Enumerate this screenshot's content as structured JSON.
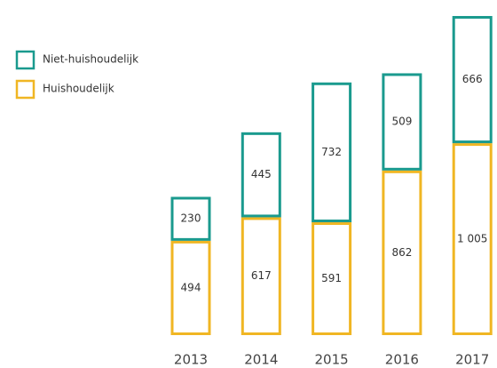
{
  "chart_data": {
    "type": "stacked-bar",
    "categories": [
      "2013",
      "2014",
      "2015",
      "2016",
      "2017"
    ],
    "series": [
      {
        "name": "Huishoudelijk",
        "color": "#f0b623",
        "values": [
          494,
          617,
          591,
          862,
          1005
        ],
        "value_labels": [
          "494",
          "617",
          "591",
          "862",
          "1 005"
        ]
      },
      {
        "name": "Niet-huishoudelijk",
        "color": "#1a9a8e",
        "values": [
          230,
          445,
          732,
          509,
          666
        ]
      }
    ]
  }
}
